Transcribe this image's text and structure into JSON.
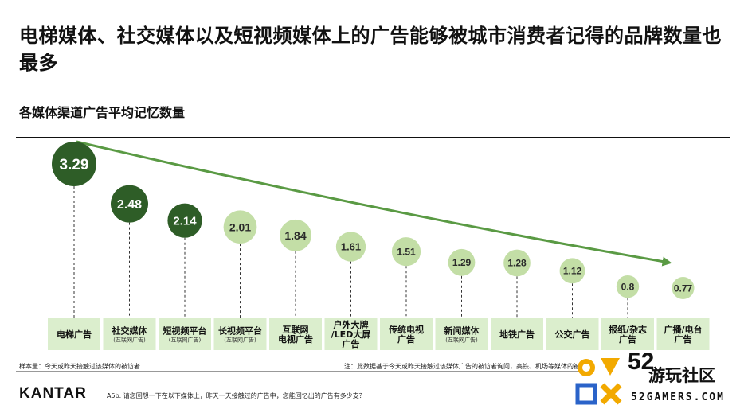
{
  "title": "电梯媒体、社交媒体以及短视频媒体上的广告能够被城市消费者记得的品牌数量也最多",
  "subtitle": "各媒体渠道广告平均记忆数量",
  "colors": {
    "dark_green": "#2e5d27",
    "light_green": "#c3dea6",
    "box_fill": "#dbeecd",
    "arrow": "#5a9a44"
  },
  "chart_data": {
    "type": "bubble",
    "title": "各媒体渠道广告平均记忆数量",
    "categories": [
      {
        "label": "电梯广告",
        "sub": ""
      },
      {
        "label": "社交媒体",
        "sub": "(互联网广告)"
      },
      {
        "label": "短视频平台",
        "sub": "(互联网广告)"
      },
      {
        "label": "长视频平台",
        "sub": "(互联网广告)"
      },
      {
        "label": "互联网\n电视广告",
        "sub": ""
      },
      {
        "label": "户外大牌\n/LED大屏\n广告",
        "sub": ""
      },
      {
        "label": "传统电视\n广告",
        "sub": ""
      },
      {
        "label": "新闻媒体",
        "sub": "(互联网广告)"
      },
      {
        "label": "地铁广告",
        "sub": ""
      },
      {
        "label": "公交广告",
        "sub": ""
      },
      {
        "label": "报纸/杂志\n广告",
        "sub": ""
      },
      {
        "label": "广播/电台\n广告",
        "sub": ""
      }
    ],
    "values": [
      3.29,
      2.48,
      2.14,
      2.01,
      1.84,
      1.61,
      1.51,
      1.29,
      1.28,
      1.12,
      0.8,
      0.77
    ],
    "value_labels": [
      "3.29",
      "2.48",
      "2.14",
      "2.01",
      "1.84",
      "1.61",
      "1.51",
      "1.29",
      "1.28",
      "1.12",
      "0.8",
      "0.77"
    ],
    "highlight_count": 3
  },
  "footer": {
    "sample": "样本量：今天或昨天接触过该媒体的被访者",
    "note": "注：此数据基于今天或昨天接触过该媒体广告的被访者询问，高铁、机场等媒体的被访者较少，并不计入",
    "brand": "KANTAR",
    "question": "A5b. 请您回想一下在以下媒体上，昨天一天接触过的广告中，您能回忆出的广告有多少支？"
  },
  "watermark": {
    "number": "52",
    "name": "游玩社区",
    "url": "52GAMERS.COM"
  }
}
